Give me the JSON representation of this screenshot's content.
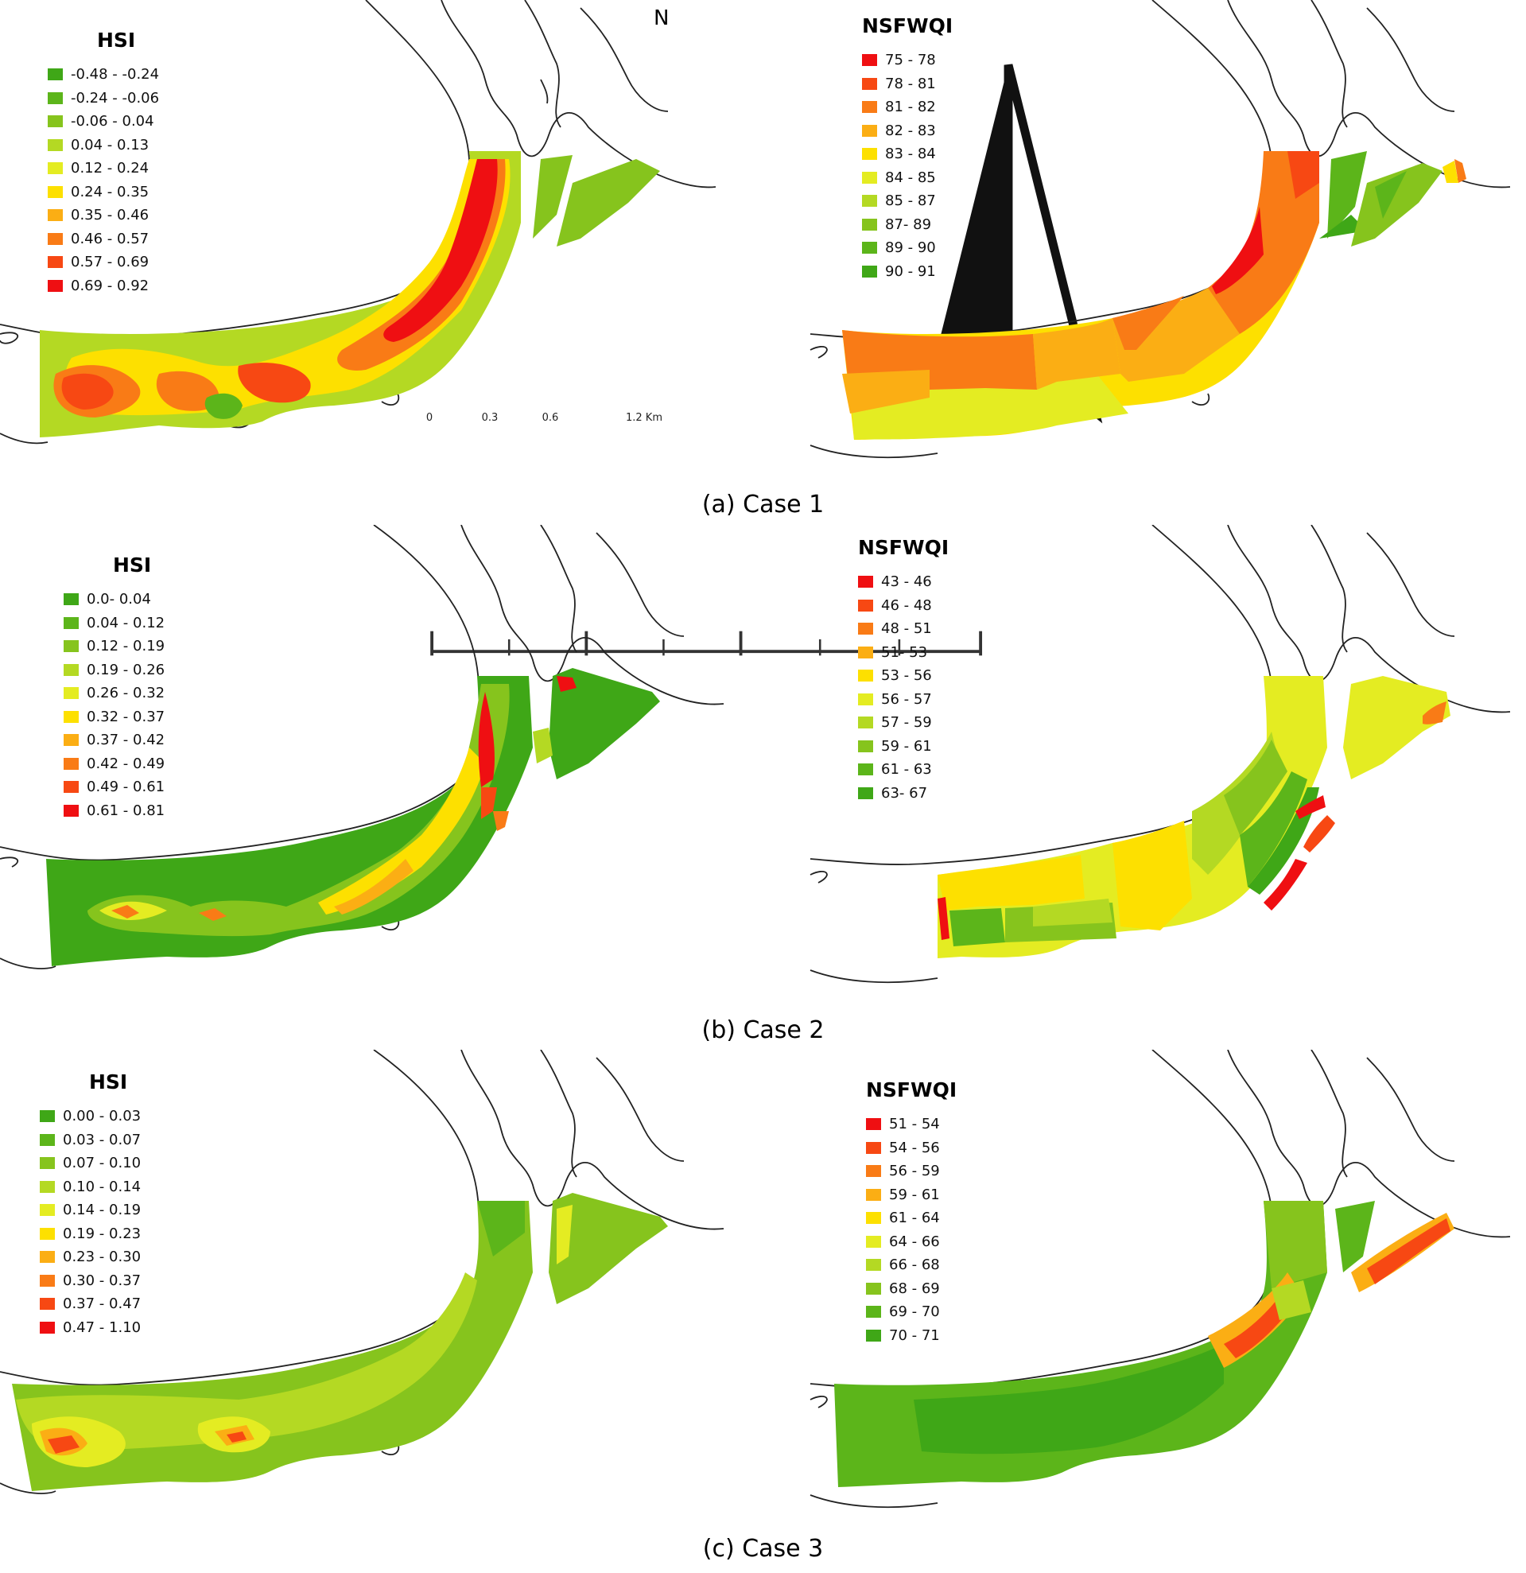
{
  "panels": [
    {
      "caption": "(a) Case 1",
      "hsi": {
        "title": "HSI",
        "items": [
          {
            "label": "-0.48 - -0.24",
            "color": "#3fa717"
          },
          {
            "label": "-0.24 - -0.06",
            "color": "#5cb51a"
          },
          {
            "label": "-0.06 - 0.04",
            "color": "#86c41d"
          },
          {
            "label": "0.04 - 0.13",
            "color": "#b4d923"
          },
          {
            "label": "0.12 - 0.24",
            "color": "#e4ec22"
          },
          {
            "label": "0.24 - 0.35",
            "color": "#fde000"
          },
          {
            "label": "0.35 - 0.46",
            "color": "#fbae14"
          },
          {
            "label": "0.46 - 0.57",
            "color": "#f97b16"
          },
          {
            "label": "0.57 - 0.69",
            "color": "#f74813"
          },
          {
            "label": "0.69 - 0.92",
            "color": "#ef0f12"
          }
        ]
      },
      "wqi": {
        "title": "NSFWQI",
        "items": [
          {
            "label": "75 - 78",
            "color": "#ef0f12"
          },
          {
            "label": "78 - 81",
            "color": "#f74813"
          },
          {
            "label": "81 - 82",
            "color": "#f97b16"
          },
          {
            "label": "82 - 83",
            "color": "#fbae14"
          },
          {
            "label": "83 - 84",
            "color": "#fde000"
          },
          {
            "label": "84 - 85",
            "color": "#e4ec22"
          },
          {
            "label": "85 - 87",
            "color": "#b4d923"
          },
          {
            "label": "87- 89",
            "color": "#86c41d"
          },
          {
            "label": "89 - 90",
            "color": "#5cb51a"
          },
          {
            "label": "90 - 91",
            "color": "#3fa717"
          }
        ]
      }
    },
    {
      "caption": "(b) Case 2",
      "hsi": {
        "title": "HSI",
        "items": [
          {
            "label": "0.0- 0.04",
            "color": "#3fa717"
          },
          {
            "label": "0.04 - 0.12",
            "color": "#5cb51a"
          },
          {
            "label": "0.12 - 0.19",
            "color": "#86c41d"
          },
          {
            "label": "0.19 - 0.26",
            "color": "#b4d923"
          },
          {
            "label": "0.26 - 0.32",
            "color": "#e4ec22"
          },
          {
            "label": "0.32 - 0.37",
            "color": "#fde000"
          },
          {
            "label": "0.37 - 0.42",
            "color": "#fbae14"
          },
          {
            "label": "0.42 - 0.49",
            "color": "#f97b16"
          },
          {
            "label": "0.49 - 0.61",
            "color": "#f74813"
          },
          {
            "label": "0.61 - 0.81",
            "color": "#ef0f12"
          }
        ]
      },
      "wqi": {
        "title": "NSFWQI",
        "items": [
          {
            "label": "43 - 46",
            "color": "#ef0f12"
          },
          {
            "label": "46 - 48",
            "color": "#f74813"
          },
          {
            "label": "48 - 51",
            "color": "#f97b16"
          },
          {
            "label": "51- 53",
            "color": "#fbae14"
          },
          {
            "label": "53 - 56",
            "color": "#fde000"
          },
          {
            "label": "56 - 57",
            "color": "#e4ec22"
          },
          {
            "label": "57 - 59",
            "color": "#b4d923"
          },
          {
            "label": "59 - 61",
            "color": "#86c41d"
          },
          {
            "label": "61 - 63",
            "color": "#5cb51a"
          },
          {
            "label": "63- 67",
            "color": "#3fa717"
          }
        ]
      }
    },
    {
      "caption": "(c) Case 3",
      "hsi": {
        "title": "HSI",
        "items": [
          {
            "label": "0.00 - 0.03",
            "color": "#3fa717"
          },
          {
            "label": "0.03 - 0.07",
            "color": "#5cb51a"
          },
          {
            "label": "0.07 - 0.10",
            "color": "#86c41d"
          },
          {
            "label": "0.10 - 0.14",
            "color": "#b4d923"
          },
          {
            "label": "0.14 - 0.19",
            "color": "#e4ec22"
          },
          {
            "label": "0.19 - 0.23",
            "color": "#fde000"
          },
          {
            "label": "0.23 - 0.30",
            "color": "#fbae14"
          },
          {
            "label": "0.30 - 0.37",
            "color": "#f97b16"
          },
          {
            "label": "0.37 - 0.47",
            "color": "#f74813"
          },
          {
            "label": "0.47 - 1.10",
            "color": "#ef0f12"
          }
        ]
      },
      "wqi": {
        "title": "NSFWQI",
        "items": [
          {
            "label": "51 - 54",
            "color": "#ef0f12"
          },
          {
            "label": "54 - 56",
            "color": "#f74813"
          },
          {
            "label": "56 - 59",
            "color": "#f97b16"
          },
          {
            "label": "59 - 61",
            "color": "#fbae14"
          },
          {
            "label": "61 - 64",
            "color": "#fde000"
          },
          {
            "label": "64 - 66",
            "color": "#e4ec22"
          },
          {
            "label": "66 - 68",
            "color": "#b4d923"
          },
          {
            "label": "68 - 69",
            "color": "#86c41d"
          },
          {
            "label": "69 - 70",
            "color": "#5cb51a"
          },
          {
            "label": "70 - 71",
            "color": "#3fa717"
          }
        ]
      }
    }
  ],
  "north_arrow": {
    "label": "N"
  },
  "scale_bar": {
    "ticks": [
      "0",
      "0.3",
      "0.6",
      "1.2 Km"
    ]
  }
}
